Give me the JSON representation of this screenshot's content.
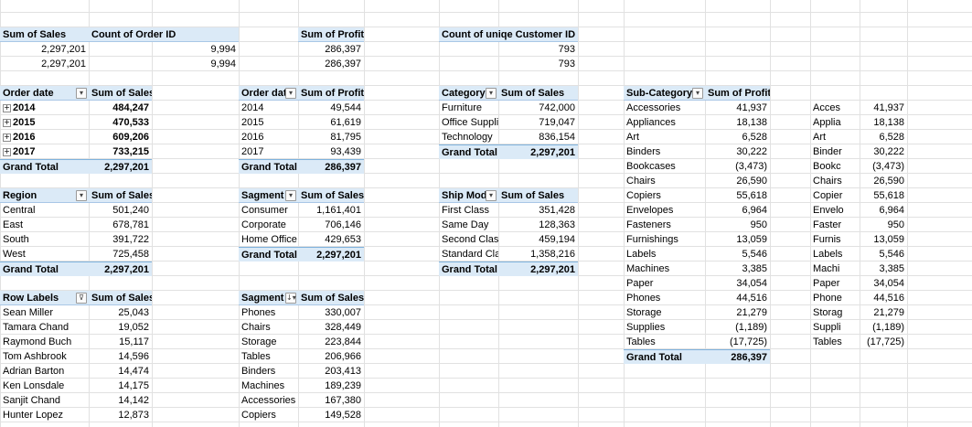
{
  "grid": {
    "line_color": "#e1e1e1",
    "header_fill": "#dbeaf7"
  },
  "summary": {
    "sales_header": "Sum of Sales",
    "sales_values": [
      "2,297,201",
      "2,297,201"
    ],
    "orders_header": "Count of Order ID",
    "orders_values": [
      "9,994",
      "9,994"
    ],
    "profit_header": "Sum of Profit",
    "profit_values": [
      "286,397",
      "286,397"
    ],
    "customers_header": "Count of uniqe Customer ID",
    "customers_values": [
      "793",
      "793"
    ]
  },
  "pivot_year_sales": {
    "h1": "Order date",
    "h2": "Sum of Sales",
    "rows": [
      [
        "2014",
        "484,247"
      ],
      [
        "2015",
        "470,533"
      ],
      [
        "2016",
        "609,206"
      ],
      [
        "2017",
        "733,215"
      ]
    ],
    "total": [
      "Grand Total",
      "2,297,201"
    ]
  },
  "pivot_year_profit": {
    "h1": "Order dat",
    "h2": "Sum of Profit",
    "rows": [
      [
        "2014",
        "49,544"
      ],
      [
        "2015",
        "61,619"
      ],
      [
        "2016",
        "81,795"
      ],
      [
        "2017",
        "93,439"
      ]
    ],
    "total": [
      "Grand Total",
      "286,397"
    ]
  },
  "pivot_category": {
    "h1": "Category",
    "h2": "Sum of Sales",
    "rows": [
      [
        "Furniture",
        "742,000"
      ],
      [
        "Office Supplies",
        "719,047"
      ],
      [
        "Technology",
        "836,154"
      ]
    ],
    "total": [
      "Grand Total",
      "2,297,201"
    ]
  },
  "pivot_subcat_profit": {
    "h1": "Sub-Category",
    "h2": "Sum of Profit",
    "rows": [
      [
        "Accessories",
        "41,937"
      ],
      [
        "Appliances",
        "18,138"
      ],
      [
        "Art",
        "6,528"
      ],
      [
        "Binders",
        "30,222"
      ],
      [
        "Bookcases",
        "(3,473)"
      ],
      [
        "Chairs",
        "26,590"
      ],
      [
        "Copiers",
        "55,618"
      ],
      [
        "Envelopes",
        "6,964"
      ],
      [
        "Fasteners",
        "950"
      ],
      [
        "Furnishings",
        "13,059"
      ],
      [
        "Labels",
        "5,546"
      ],
      [
        "Machines",
        "3,385"
      ],
      [
        "Paper",
        "34,054"
      ],
      [
        "Phones",
        "44,516"
      ],
      [
        "Storage",
        "21,279"
      ],
      [
        "Supplies",
        "(1,189)"
      ],
      [
        "Tables",
        "(17,725)"
      ]
    ],
    "total": [
      "Grand Total",
      "286,397"
    ]
  },
  "subcat_copy": {
    "rows": [
      [
        "Acces",
        "41,937"
      ],
      [
        "Applia",
        "18,138"
      ],
      [
        "Art",
        "6,528"
      ],
      [
        "Binder",
        "30,222"
      ],
      [
        "Bookc",
        "(3,473)"
      ],
      [
        "Chairs",
        "26,590"
      ],
      [
        "Copier",
        "55,618"
      ],
      [
        "Envelo",
        "6,964"
      ],
      [
        "Faster",
        "950"
      ],
      [
        "Furnis",
        "13,059"
      ],
      [
        "Labels",
        "5,546"
      ],
      [
        "Machi",
        "3,385"
      ],
      [
        "Paper",
        "34,054"
      ],
      [
        "Phone",
        "44,516"
      ],
      [
        "Storag",
        "21,279"
      ],
      [
        "Suppli",
        "(1,189)"
      ],
      [
        "Tables",
        "(17,725)"
      ]
    ]
  },
  "pivot_region": {
    "h1": "Region",
    "h2": "Sum of Sales",
    "rows": [
      [
        "Central",
        "501,240"
      ],
      [
        "East",
        "678,781"
      ],
      [
        "South",
        "391,722"
      ],
      [
        "West",
        "725,458"
      ]
    ],
    "total": [
      "Grand Total",
      "2,297,201"
    ]
  },
  "pivot_segment": {
    "h1": "Sagment",
    "h2": "Sum of Sales",
    "rows": [
      [
        "Consumer",
        "1,161,401"
      ],
      [
        "Corporate",
        "706,146"
      ],
      [
        "Home Office",
        "429,653"
      ]
    ],
    "total": [
      "Grand Total",
      "2,297,201"
    ]
  },
  "pivot_shipmode": {
    "h1": "Ship Mode",
    "h2": "Sum of Sales",
    "rows": [
      [
        "First Class",
        "351,428"
      ],
      [
        "Same Day",
        "128,363"
      ],
      [
        "Second Class",
        "459,194"
      ],
      [
        "Standard Class",
        "1,358,216"
      ]
    ],
    "total": [
      "Grand Total",
      "2,297,201"
    ]
  },
  "pivot_customers": {
    "h1": "Row Labels",
    "h2": "Sum of Sales",
    "rows": [
      [
        "Sean Miller",
        "25,043"
      ],
      [
        "Tamara Chand",
        "19,052"
      ],
      [
        "Raymond Buch",
        "15,117"
      ],
      [
        "Tom Ashbrook",
        "14,596"
      ],
      [
        "Adrian Barton",
        "14,474"
      ],
      [
        "Ken Lonsdale",
        "14,175"
      ],
      [
        "Sanjit Chand",
        "14,142"
      ],
      [
        "Hunter Lopez",
        "12,873"
      ]
    ]
  },
  "pivot_subcat_sales": {
    "h1": "Sagment",
    "h2": "Sum of Sales",
    "rows": [
      [
        "Phones",
        "330,007"
      ],
      [
        "Chairs",
        "328,449"
      ],
      [
        "Storage",
        "223,844"
      ],
      [
        "Tables",
        "206,966"
      ],
      [
        "Binders",
        "203,413"
      ],
      [
        "Machines",
        "189,239"
      ],
      [
        "Accessories",
        "167,380"
      ],
      [
        "Copiers",
        "149,528"
      ]
    ]
  },
  "icons": {
    "dropdown": "▾",
    "sorted_filter": "↓▾",
    "filtered": "⊽",
    "expand": "+"
  }
}
